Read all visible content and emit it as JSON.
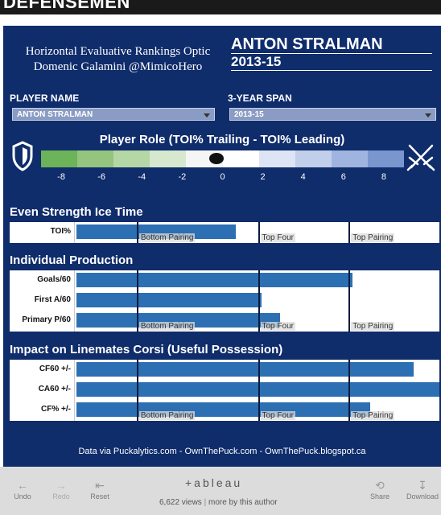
{
  "page_title": "DEFENSEMEN",
  "header": {
    "line1": "Horizontal Evaluative Rankings Optic",
    "line2": "Domenic Galamini @MimicoHero",
    "player": "ANTON STRALMAN",
    "season": "2013-15"
  },
  "filters": {
    "player_label": "PLAYER NAME",
    "player_value": "ANTON STRALMAN",
    "span_label": "3-YEAR SPAN",
    "span_value": "2013-15"
  },
  "role": {
    "title": "Player Role (TOI% Trailing - TOI% Leading)",
    "ticks": [
      "-8",
      "-6",
      "-4",
      "-2",
      "0",
      "2",
      "4",
      "6",
      "8"
    ],
    "scale_colors": [
      "#6db35a",
      "#95c47f",
      "#b5d6a5",
      "#d6e8cd",
      "#f5f5f5",
      "#ffffff",
      "#dde4f3",
      "#c2cfea",
      "#9fb4de",
      "#7a96cf"
    ],
    "marker_value": -0.3,
    "left_icon": "shield-icon",
    "right_icon": "crossed-swords-icon"
  },
  "sections": {
    "es_title": "Even Strength Ice Time",
    "ip_title": "Individual Production",
    "imp_title": "Impact on Linemates Corsi (Useful Possession)"
  },
  "zones": {
    "bottom": "Bottom Pairing",
    "four": "Top Four",
    "top": "Top Pairing"
  },
  "chart_data": {
    "type": "bar",
    "metrics": [
      {
        "group": "Even Strength Ice Time",
        "label": "TOI%",
        "value": 0.44
      },
      {
        "group": "Individual Production",
        "label": "Goals/60",
        "value": 0.76
      },
      {
        "group": "Individual Production",
        "label": "First A/60",
        "value": 0.51
      },
      {
        "group": "Individual Production",
        "label": "Primary P/60",
        "value": 0.56
      },
      {
        "group": "Impact on Linemates Corsi (Useful Possession)",
        "label": "CF60 +/-",
        "value": 0.93
      },
      {
        "group": "Impact on Linemates Corsi (Useful Possession)",
        "label": "CA60 +/-",
        "value": 1.0
      },
      {
        "group": "Impact on Linemates Corsi (Useful Possession)",
        "label": "CF% +/-",
        "value": 0.81
      }
    ],
    "thresholds": [
      0.166,
      0.5,
      0.75
    ]
  },
  "footer": {
    "credits": "Data via Puckalytics.com - OwnThePuck.com - OwnThePuck.blogspot.ca"
  },
  "toolbar": {
    "undo": "Undo",
    "redo": "Redo",
    "reset": "Reset",
    "logo": "+ableau",
    "views": "6,622 views",
    "more": "more by this author",
    "share": "Share",
    "download": "Download"
  }
}
